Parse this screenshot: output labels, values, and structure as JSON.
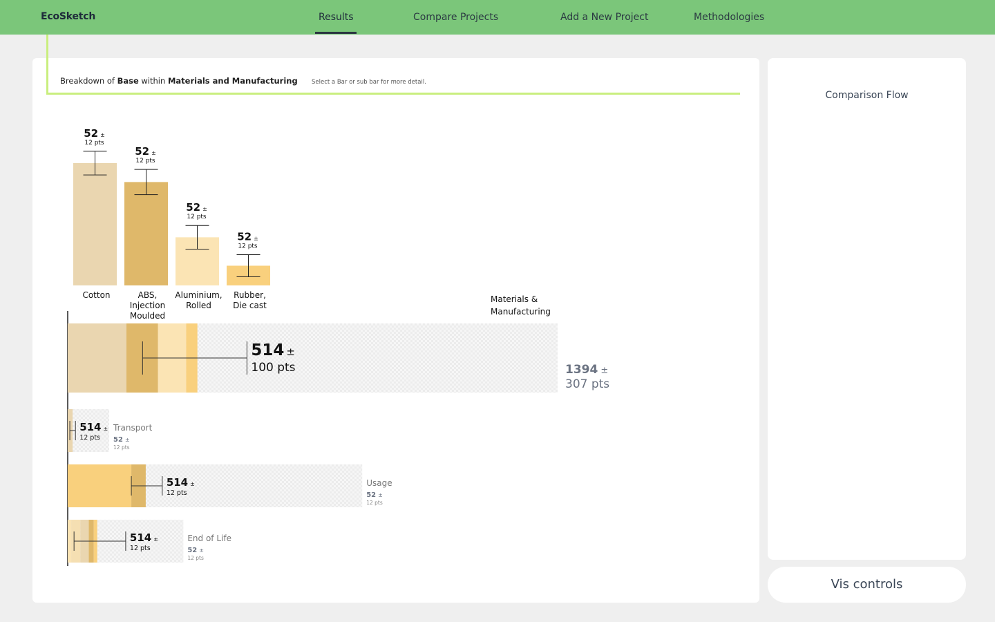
{
  "brand": "EcoSketch",
  "nav": {
    "results": "Results",
    "compare": "Compare Projects",
    "add": "Add a New Project",
    "methodologies": "Methodologies"
  },
  "breakdown": {
    "prefix": "Breakdown of",
    "base": "Base",
    "mid": "within",
    "section": "Materials and Manufacturing",
    "hint": "Select a Bar or sub bar for more detail."
  },
  "side": {
    "title": "Comparison Flow",
    "controls": "Vis controls"
  },
  "colors": {
    "nav_green": "#7bc67a",
    "accent_line": "#c9ee7e",
    "cotton": "#ead6b0",
    "abs": "#dfb86a",
    "aluminium": "#fbe4b4",
    "rubber": "#f9d07d",
    "muted_text": "#6b7382"
  },
  "chart_data": [
    {
      "type": "bar",
      "name": "materials-breakdown",
      "categories": [
        "Cotton",
        "ABS, Injection Moulded",
        "Aluminium, Rolled",
        "Rubber, Die cast"
      ],
      "values": [
        310,
        262,
        122,
        50
      ],
      "error": [
        30,
        32,
        30,
        28
      ],
      "ylim": [
        0,
        310
      ],
      "labels": [
        {
          "value": "52",
          "pm": "±",
          "unit": "12 pts"
        },
        {
          "value": "52",
          "pm": "±",
          "unit": "12 pts"
        },
        {
          "value": "52",
          "pm": "±",
          "unit": "12 pts"
        },
        {
          "value": "52",
          "pm": "±",
          "unit": "12 pts"
        }
      ],
      "colors": [
        "#ead6b0",
        "#dfb86a",
        "#fbe4b4",
        "#f9d07d"
      ]
    },
    {
      "type": "bar",
      "name": "lifecycle-stages",
      "orientation": "horizontal",
      "xlim": [
        0,
        1394
      ],
      "stages": [
        {
          "name": "Materials & Manufacturing",
          "segments": [
            167,
            90,
            80,
            32
          ],
          "colors": [
            "#ead6b0",
            "#dfb86a",
            "#fbe4b4",
            "#f9d07d"
          ],
          "total_extent": 1394,
          "error_low": 213,
          "error_high": 510,
          "label": {
            "value": "514",
            "pm": "±",
            "unit": "100 pts"
          },
          "side_total": {
            "value": "1394",
            "pm": "±",
            "unit": "307 pts"
          }
        },
        {
          "name": "Transport",
          "segments": [
            14
          ],
          "colors": [
            "#ead6b0"
          ],
          "total_extent": 118,
          "error_low": 6,
          "error_high": 22,
          "label": {
            "value": "514",
            "pm": "±",
            "unit": "12 pts"
          },
          "side_total": {
            "value": "52",
            "pm": "±",
            "unit": "12 pts"
          }
        },
        {
          "name": "Usage",
          "segments": [
            181,
            41
          ],
          "colors": [
            "#f9d07d",
            "#dfb86a"
          ],
          "total_extent": 838,
          "error_low": 181,
          "error_high": 269,
          "label": {
            "value": "514",
            "pm": "±",
            "unit": "12 pts"
          },
          "side_total": {
            "value": "52",
            "pm": "±",
            "unit": "12 pts"
          }
        },
        {
          "name": "End of Life",
          "segments": [
            10,
            26,
            24,
            14,
            10
          ],
          "colors": [
            "#fbe4b4",
            "#f5dfb2",
            "#ead6b0",
            "#dfb86a",
            "#f9d07d"
          ],
          "total_extent": 329,
          "error_low": 18,
          "error_high": 165,
          "label": {
            "value": "514",
            "pm": "±",
            "unit": "12 pts"
          },
          "side_total": {
            "value": "52",
            "pm": "±",
            "unit": "12 pts"
          }
        }
      ]
    }
  ]
}
